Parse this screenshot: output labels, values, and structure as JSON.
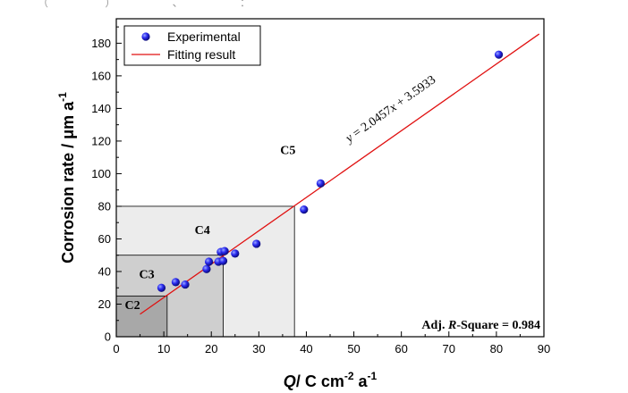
{
  "page_fragment": "（ ） 、 ：",
  "chart_data": {
    "type": "scatter",
    "xlabel": {
      "italic": "Q",
      "rest": "/ C cm",
      "sup": "-2",
      "unit": " a",
      "sup2": "-1"
    },
    "ylabel": {
      "main": "Corrosion rate / μm a",
      "sup": "-1"
    },
    "xlim": [
      0,
      90
    ],
    "ylim": [
      0,
      195
    ],
    "xticks": [
      0,
      10,
      20,
      30,
      40,
      50,
      60,
      70,
      80,
      90
    ],
    "yticks": [
      0,
      20,
      40,
      60,
      80,
      100,
      120,
      140,
      160,
      180
    ],
    "x_minor_step": 5,
    "y_minor_step": 10,
    "series": [
      {
        "name": "Experimental",
        "kind": "scatter",
        "color": "#1f1fdf",
        "points": [
          [
            9.5,
            30
          ],
          [
            12.5,
            33.5
          ],
          [
            14.5,
            32
          ],
          [
            19,
            41.5
          ],
          [
            19.5,
            46
          ],
          [
            21.5,
            46
          ],
          [
            22,
            52
          ],
          [
            22.5,
            46.5
          ],
          [
            22.8,
            52.5
          ],
          [
            25,
            51
          ],
          [
            29.5,
            57
          ],
          [
            39.5,
            78
          ],
          [
            43,
            94
          ],
          [
            80.5,
            173
          ]
        ]
      },
      {
        "name": "Fitting result",
        "kind": "line",
        "color": "#e01010",
        "slope": 2.0457,
        "intercept": 3.5933,
        "x_range": [
          5,
          89
        ]
      }
    ],
    "zones": [
      {
        "label": "C2",
        "x_max": 10.7,
        "y_max": 25,
        "fill": "#a8a8a8",
        "label_at": [
          1.8,
          17
        ]
      },
      {
        "label": "C3",
        "x_max": 22.5,
        "y_max": 50,
        "fill": "#cfcfcf",
        "label_at": [
          4.8,
          36
        ]
      },
      {
        "label": "C4",
        "x_max": 37.5,
        "y_max": 80,
        "fill": "#ececec",
        "label_at": [
          16.5,
          63
        ]
      },
      {
        "label": "C5",
        "x_max": null,
        "y_max": null,
        "fill": null,
        "label_at": [
          34.5,
          112
        ]
      }
    ],
    "equation": {
      "y": "y",
      "mid": " = 2.0457",
      "x": "x",
      "rest": " + 3.5933",
      "anchor": [
        49,
        119
      ]
    },
    "stat": {
      "pre": "Adj. ",
      "italic": "R",
      "post": "-Square = 0.984"
    },
    "legend": {
      "position": "top-left"
    }
  }
}
